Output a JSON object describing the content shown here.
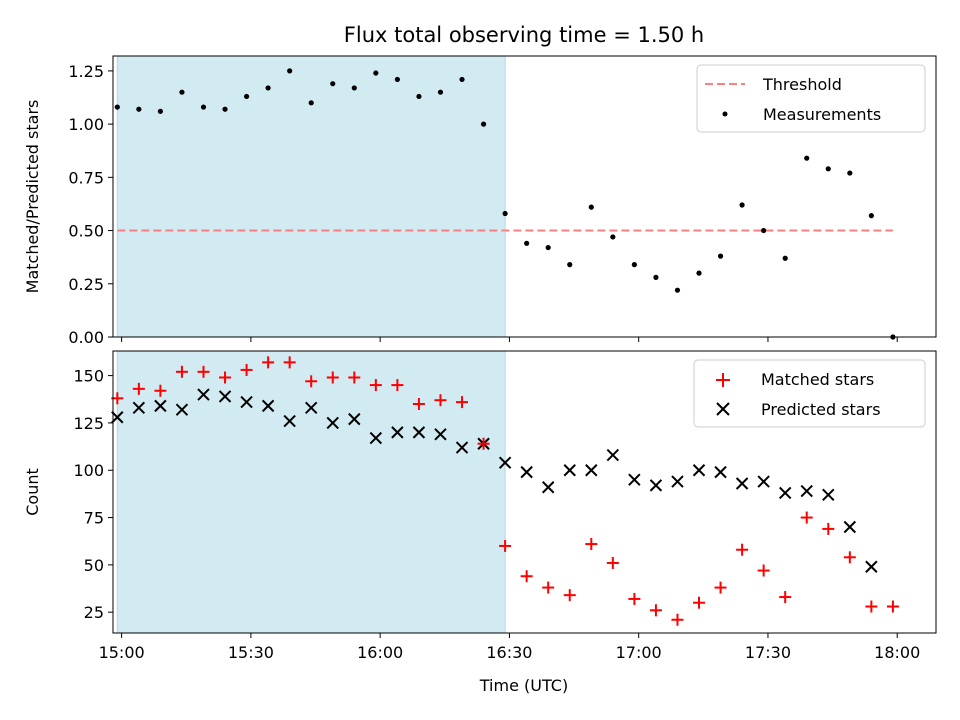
{
  "title": "Flux total observing time = 1.50 h",
  "colors": {
    "shade": "#add8e6",
    "threshold": "#ff7f7f",
    "measurement": "#000000",
    "matched": "#ff0000",
    "predicted": "#000000"
  },
  "x_tick_labels": [
    "15:00",
    "15:30",
    "16:00",
    "16:30",
    "17:00",
    "17:30",
    "18:00"
  ],
  "x_tick_minutes": [
    0,
    30,
    60,
    90,
    120,
    150,
    180
  ],
  "xlabel": "Time (UTC)",
  "chart_data": [
    {
      "type": "scatter",
      "title": "Flux total observing time = 1.50 h",
      "ylabel": "Matched/Predicted stars",
      "xlim": [
        "14:58",
        "18:09"
      ],
      "ylim": [
        0,
        1.32
      ],
      "y_ticks": [
        "0.00",
        "0.25",
        "0.50",
        "0.75",
        "1.00",
        "1.25"
      ],
      "y_tick_values": [
        0,
        0.25,
        0.5,
        0.75,
        1.0,
        1.25
      ],
      "shaded_span": [
        "14:59",
        "16:29"
      ],
      "legend": [
        "Threshold",
        "Measurements"
      ],
      "legend_position": "upper right",
      "threshold": {
        "name": "Threshold",
        "value": 0.5,
        "x_start": "14:59",
        "x_end": "17:59"
      },
      "series": [
        {
          "name": "Measurements",
          "x": [
            "14:59",
            "15:04",
            "15:09",
            "15:14",
            "15:19",
            "15:24",
            "15:29",
            "15:34",
            "15:39",
            "15:44",
            "15:49",
            "15:54",
            "15:59",
            "16:04",
            "16:09",
            "16:14",
            "16:19",
            "16:24",
            "16:29",
            "16:34",
            "16:39",
            "16:44",
            "16:49",
            "16:54",
            "16:59",
            "17:04",
            "17:09",
            "17:14",
            "17:19",
            "17:24",
            "17:29",
            "17:34",
            "17:39",
            "17:44",
            "17:49",
            "17:54",
            "17:59"
          ],
          "y": [
            1.08,
            1.07,
            1.06,
            1.15,
            1.08,
            1.07,
            1.13,
            1.17,
            1.25,
            1.1,
            1.19,
            1.17,
            1.24,
            1.21,
            1.13,
            1.15,
            1.21,
            1.0,
            0.58,
            0.44,
            0.42,
            0.34,
            0.61,
            0.47,
            0.34,
            0.28,
            0.22,
            0.3,
            0.38,
            0.62,
            0.5,
            0.37,
            0.84,
            0.79,
            0.77,
            0.57,
            0.0
          ]
        }
      ]
    },
    {
      "type": "scatter",
      "ylabel": "Count",
      "xlabel": "Time (UTC)",
      "xlim": [
        "14:58",
        "18:09"
      ],
      "ylim": [
        14,
        163
      ],
      "y_ticks": [
        "25",
        "50",
        "75",
        "100",
        "125",
        "150"
      ],
      "y_tick_values": [
        25,
        50,
        75,
        100,
        125,
        150
      ],
      "shaded_span": [
        "14:59",
        "16:29"
      ],
      "legend": [
        "Matched stars",
        "Predicted stars"
      ],
      "legend_position": "upper right",
      "series": [
        {
          "name": "Matched stars",
          "marker": "+",
          "x": [
            "14:59",
            "15:04",
            "15:09",
            "15:14",
            "15:19",
            "15:24",
            "15:29",
            "15:34",
            "15:39",
            "15:44",
            "15:49",
            "15:54",
            "15:59",
            "16:04",
            "16:09",
            "16:14",
            "16:19",
            "16:24",
            "16:29",
            "16:34",
            "16:39",
            "16:44",
            "16:49",
            "16:54",
            "16:59",
            "17:04",
            "17:09",
            "17:14",
            "17:19",
            "17:24",
            "17:29",
            "17:34",
            "17:39",
            "17:44",
            "17:49",
            "17:54",
            "17:59"
          ],
          "y": [
            138,
            143,
            142,
            152,
            152,
            149,
            153,
            157,
            157,
            147,
            149,
            149,
            145,
            145,
            135,
            137,
            136,
            114,
            60,
            44,
            38,
            34,
            61,
            51,
            32,
            26,
            21,
            30,
            38,
            58,
            47,
            33,
            75,
            69,
            54,
            28,
            28
          ]
        },
        {
          "name": "Predicted stars",
          "marker": "x",
          "x": [
            "14:59",
            "15:04",
            "15:09",
            "15:14",
            "15:19",
            "15:24",
            "15:29",
            "15:34",
            "15:39",
            "15:44",
            "15:49",
            "15:54",
            "15:59",
            "16:04",
            "16:09",
            "16:14",
            "16:19",
            "16:24",
            "16:29",
            "16:34",
            "16:39",
            "16:44",
            "16:49",
            "16:54",
            "16:59",
            "17:04",
            "17:09",
            "17:14",
            "17:19",
            "17:24",
            "17:29",
            "17:34",
            "17:39",
            "17:44",
            "17:49",
            "17:54"
          ],
          "y": [
            128,
            133,
            134,
            132,
            140,
            139,
            136,
            134,
            126,
            133,
            125,
            127,
            117,
            120,
            120,
            119,
            112,
            114,
            104,
            99,
            91,
            100,
            100,
            108,
            95,
            92,
            94,
            100,
            99,
            93,
            94,
            88,
            89,
            87,
            70,
            49
          ]
        }
      ]
    }
  ]
}
